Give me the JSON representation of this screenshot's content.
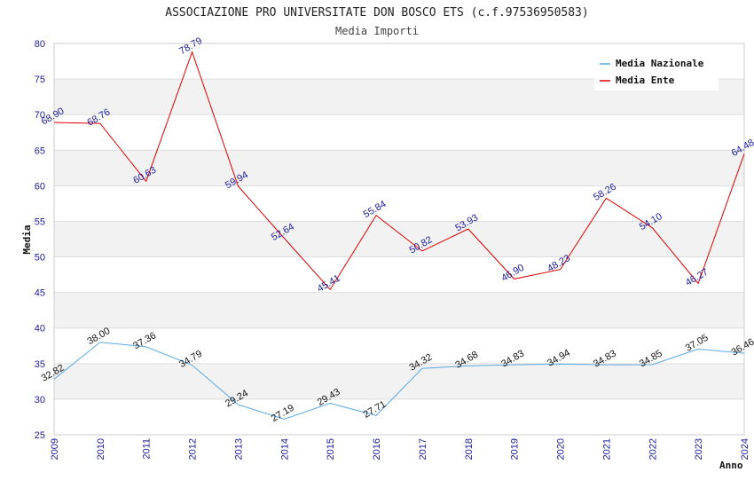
{
  "chart_data": {
    "type": "line",
    "title": "ASSOCIAZIONE PRO UNIVERSITATE DON BOSCO ETS (c.f.97536950583)",
    "subtitle": "Media Importi",
    "xlabel": "Anno",
    "ylabel": "Media",
    "ylim": [
      25,
      80
    ],
    "yticks": [
      "25",
      "30",
      "35",
      "40",
      "45",
      "50",
      "55",
      "60",
      "65",
      "70",
      "75",
      "80"
    ],
    "x": [
      "2009",
      "2010",
      "2011",
      "2012",
      "2013",
      "2014",
      "2015",
      "2016",
      "2017",
      "2018",
      "2019",
      "2020",
      "2021",
      "2022",
      "2023",
      "2024"
    ],
    "grid": true,
    "legend_position": "top-right",
    "series": [
      {
        "name": "Media Nazionale",
        "color": "#5aaae0",
        "values": [
          32.82,
          38.0,
          37.36,
          34.79,
          29.24,
          27.19,
          29.43,
          27.71,
          34.32,
          34.68,
          34.83,
          34.94,
          34.83,
          34.85,
          37.05,
          36.46
        ],
        "labels": [
          "32.82",
          "38.00",
          "37.36",
          "34.79",
          "29.24",
          "27.19",
          "29.43",
          "27.71",
          "34.32",
          "34.68",
          "34.83",
          "34.94",
          "34.83",
          "34.85",
          "37.05",
          "36.46"
        ]
      },
      {
        "name": "Media Ente",
        "color": "#dd0000",
        "values": [
          68.9,
          68.76,
          60.63,
          78.79,
          59.94,
          52.64,
          45.41,
          55.84,
          50.82,
          53.93,
          46.9,
          48.23,
          58.26,
          54.1,
          46.27,
          64.48
        ],
        "labels": [
          "68.90",
          "68.76",
          "60.63",
          "78.79",
          "59.94",
          "52.64",
          "45.41",
          "55.84",
          "50.82",
          "53.93",
          "46.90",
          "48.23",
          "58.26",
          "54.10",
          "46.27",
          "64.48"
        ]
      }
    ]
  }
}
